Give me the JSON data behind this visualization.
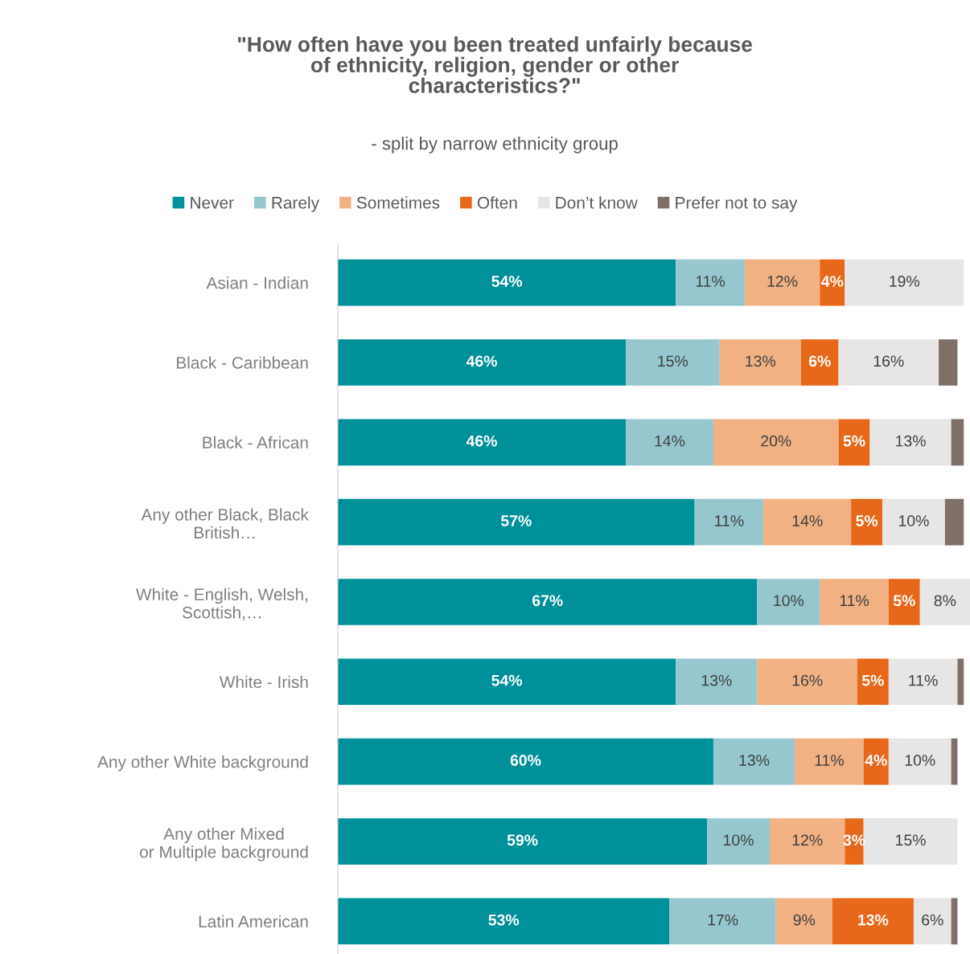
{
  "chart_data": {
    "type": "bar",
    "orientation": "horizontal",
    "stacked": true,
    "title": "\"How often have you been treated unfairly because\nof ethnicity, religion, gender or other\ncharacteristics?\"",
    "subtitle": "- split by narrow ethnicity group",
    "categories": [
      "Asian - Indian",
      "Black - Caribbean",
      "Black - African",
      "Any other Black, Black\nBritish…",
      "White - English, Welsh,\nScottish,…",
      "White - Irish",
      "Any other White background",
      "Any other Mixed\nor Multiple background",
      "Latin American"
    ],
    "legend": "top",
    "grid": false,
    "series": [
      {
        "name": "Never",
        "color": "#00909a",
        "values": [
          54,
          46,
          46,
          57,
          67,
          54,
          60,
          59,
          53
        ],
        "value_labels": [
          "54%",
          "46%",
          "46%",
          "57%",
          "67%",
          "54%",
          "60%",
          "59%",
          "53%"
        ]
      },
      {
        "name": "Rarely",
        "color": "#96c7cf",
        "values": [
          11,
          15,
          14,
          11,
          10,
          13,
          13,
          10,
          17
        ],
        "value_labels": [
          "11%",
          "15%",
          "14%",
          "11%",
          "10%",
          "13%",
          "13%",
          "10%",
          "17%"
        ]
      },
      {
        "name": "Sometimes",
        "color": "#f2b183",
        "values": [
          12,
          13,
          20,
          14,
          11,
          16,
          11,
          12,
          9
        ],
        "value_labels": [
          "12%",
          "13%",
          "20%",
          "14%",
          "11%",
          "16%",
          "11%",
          "12%",
          "9%"
        ]
      },
      {
        "name": "Often",
        "color": "#e8681b",
        "values": [
          4,
          6,
          5,
          5,
          5,
          5,
          4,
          3,
          13
        ],
        "value_labels": [
          "4%",
          "6%",
          "5%",
          "5%",
          "5%",
          "5%",
          "4%",
          "3%",
          "13%"
        ]
      },
      {
        "name": "Don’t know",
        "color": "#e8e6e4",
        "values": [
          19,
          16,
          13,
          10,
          8,
          11,
          10,
          15,
          6
        ],
        "value_labels": [
          "19%",
          "16%",
          "13%",
          "10%",
          "8%",
          "11%",
          "10%",
          "15%",
          "6%"
        ]
      },
      {
        "name": "Prefer not to say",
        "color": "#7f6f67",
        "values": [
          0,
          3,
          2,
          3,
          0,
          1,
          1,
          0,
          1
        ]
      }
    ]
  }
}
